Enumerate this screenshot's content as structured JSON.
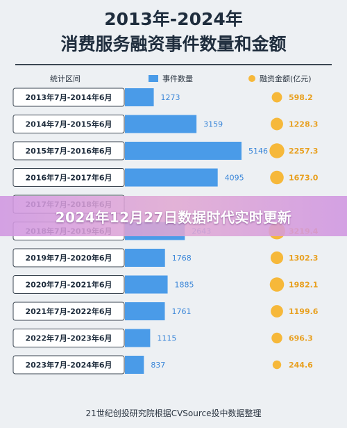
{
  "chart_data": {
    "type": "bar",
    "title": "2013年-2024年",
    "subtitle": "消费服务融资事件数量和金额",
    "header_category": "统计区间",
    "categories": [
      "2013年7月-2014年6月",
      "2014年7月-2015年6月",
      "2015年7月-2016年6月",
      "2016年7月-2017年6月",
      "2017年7月-2018年6月",
      "2018年7月-2019年6月",
      "2019年7月-2020年6月",
      "2020年7月-2021年6月",
      "2021年7月-2022年6月",
      "2022年7月-2023年6月",
      "2023年7月-2024年6月"
    ],
    "series": [
      {
        "name": "事件数量",
        "values": [
          1273,
          3159,
          5146,
          4095,
          null,
          2643,
          1768,
          1885,
          1761,
          1115,
          837
        ],
        "labels": [
          "1273",
          "3159",
          "5146",
          "4095",
          "",
          "2643",
          "1768",
          "1885",
          "1761",
          "1115",
          "837"
        ]
      },
      {
        "name": "融资金额(亿元)",
        "values": [
          598.2,
          1228.3,
          2257.3,
          1673.0,
          null,
          3219.4,
          1302.3,
          1982.1,
          1199.6,
          696.3,
          244.6
        ],
        "labels": [
          "598.2",
          "1228.3",
          "2257.3",
          "1673.0",
          "",
          "3219.4",
          "1302.3",
          "1982.1",
          "1199.6",
          "696.3",
          "244.6"
        ]
      }
    ],
    "legend": "top",
    "source": "21世纪创投研究院根据CVSource投中数据整理"
  },
  "colors": {
    "bar": "#4a9be8",
    "bar_dark": "#3a86d8",
    "circle": "#f6b83a",
    "label_amount": "#e8a020",
    "label_count": "#ffffff"
  },
  "overlay": {
    "banner_text": "2024年12月27日数据时代实时更新"
  }
}
